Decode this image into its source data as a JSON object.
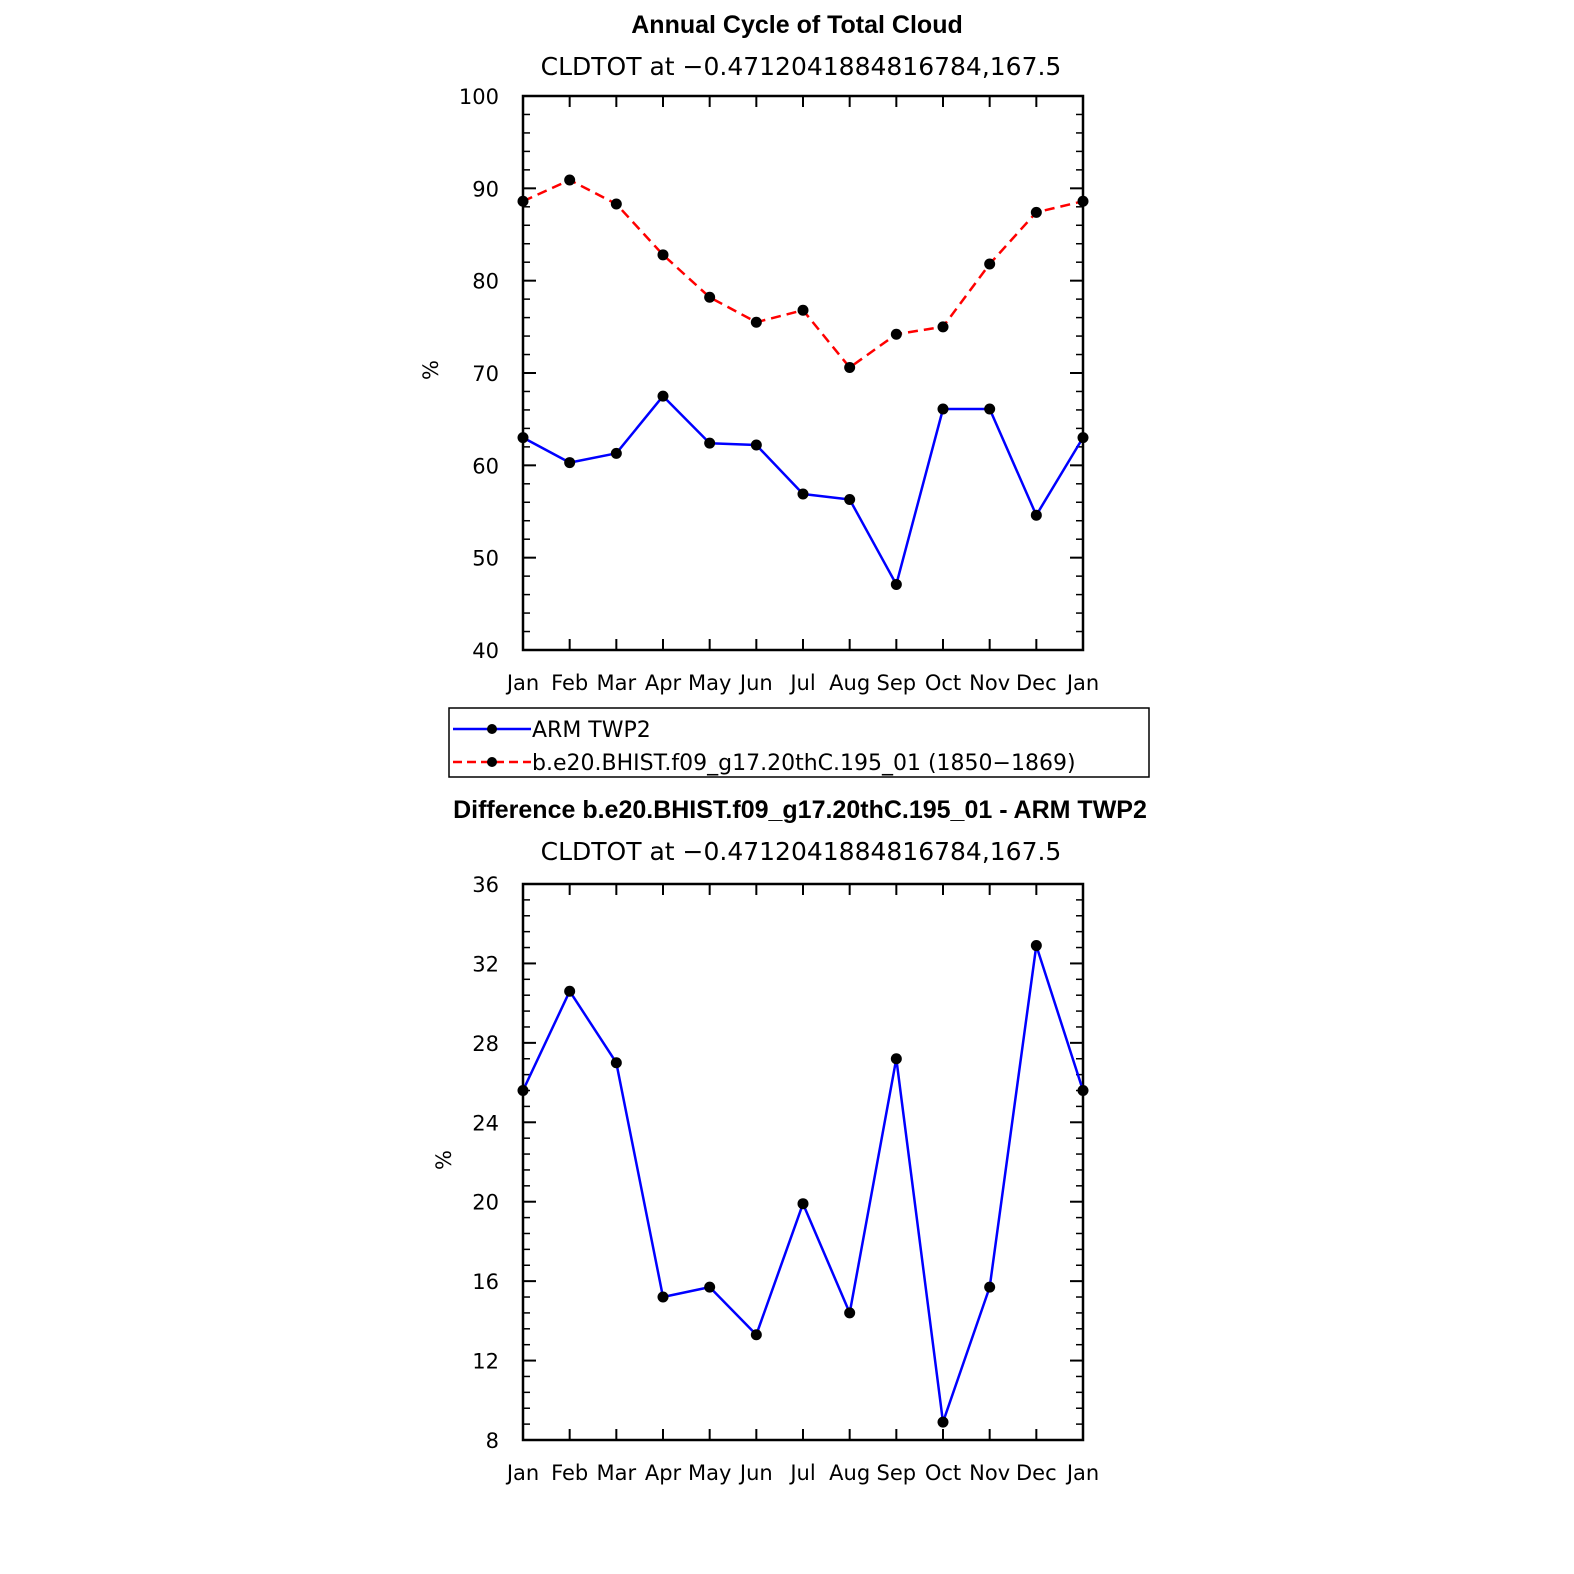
{
  "chart_data": [
    {
      "type": "line",
      "title": "Annual Cycle of Total Cloud",
      "subtitle": "CLDTOT at −0.4712041884816784,167.5",
      "ylabel": "%",
      "ylim": [
        40,
        100
      ],
      "yticks": [
        "40",
        "50",
        "60",
        "70",
        "80",
        "90",
        "100"
      ],
      "categories": [
        "Jan",
        "Feb",
        "Mar",
        "Apr",
        "May",
        "Jun",
        "Jul",
        "Aug",
        "Sep",
        "Oct",
        "Nov",
        "Dec",
        "Jan"
      ],
      "series": [
        {
          "name": "ARM TWP2",
          "color": "#0000ff",
          "dash": false,
          "values": [
            63.0,
            60.3,
            61.3,
            67.5,
            62.4,
            62.2,
            56.9,
            56.3,
            47.1,
            66.1,
            66.1,
            54.6,
            63.0
          ]
        },
        {
          "name": "b.e20.BHIST.f09_g17.20thC.195_01 (1850−1869)",
          "color": "#ff0000",
          "dash": true,
          "values": [
            88.6,
            90.9,
            88.3,
            82.8,
            78.2,
            75.5,
            76.8,
            70.6,
            74.2,
            75.0,
            81.8,
            87.4,
            88.6
          ]
        }
      ]
    },
    {
      "type": "line",
      "title": "Difference b.e20.BHIST.f09_g17.20thC.195_01 - ARM TWP2",
      "subtitle": "CLDTOT at −0.4712041884816784,167.5",
      "ylabel": "%",
      "ylim": [
        8,
        36
      ],
      "yticks": [
        "8",
        "12",
        "16",
        "20",
        "24",
        "28",
        "32",
        "36"
      ],
      "categories": [
        "Jan",
        "Feb",
        "Mar",
        "Apr",
        "May",
        "Jun",
        "Jul",
        "Aug",
        "Sep",
        "Oct",
        "Nov",
        "Dec",
        "Jan"
      ],
      "series": [
        {
          "name": "difference",
          "color": "#0000ff",
          "dash": false,
          "values": [
            25.6,
            30.6,
            27.0,
            15.2,
            15.7,
            13.3,
            19.9,
            14.4,
            27.2,
            8.9,
            15.7,
            32.9,
            25.6
          ]
        }
      ]
    }
  ]
}
